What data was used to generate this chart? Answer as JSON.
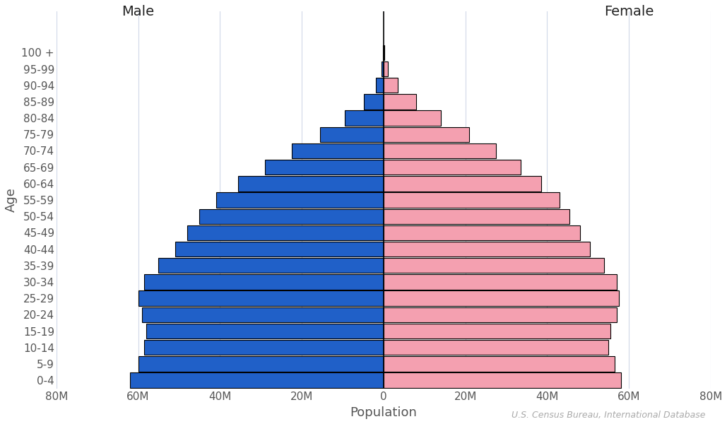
{
  "age_groups": [
    "0-4",
    "5-9",
    "10-14",
    "15-19",
    "20-24",
    "25-29",
    "30-34",
    "35-39",
    "40-44",
    "45-49",
    "50-54",
    "55-59",
    "60-64",
    "65-69",
    "70-74",
    "75-79",
    "80-84",
    "85-89",
    "90-94",
    "95-99",
    "100 +"
  ],
  "male": [
    62000000,
    60000000,
    58500000,
    58000000,
    59000000,
    60000000,
    58500000,
    55000000,
    51000000,
    48000000,
    45000000,
    41000000,
    35500000,
    29000000,
    22500000,
    15500000,
    9500000,
    4800000,
    1800000,
    500000,
    90000
  ],
  "female": [
    58000000,
    56500000,
    55000000,
    55500000,
    57000000,
    57500000,
    57000000,
    54000000,
    50500000,
    48000000,
    45500000,
    43000000,
    38500000,
    33500000,
    27500000,
    21000000,
    14000000,
    8000000,
    3500000,
    1000000,
    200000
  ],
  "male_color": "#2060c8",
  "female_color": "#f4a0b0",
  "bar_edge_color": "#000000",
  "bar_linewidth": 0.8,
  "xlim": 80000000,
  "xticks": [
    -80000000,
    -60000000,
    -40000000,
    -20000000,
    0,
    20000000,
    40000000,
    60000000,
    80000000
  ],
  "xtick_labels": [
    "80M",
    "60M",
    "40M",
    "20M",
    "0",
    "20M",
    "40M",
    "60M",
    "80M"
  ],
  "xlabel": "Population",
  "ylabel": "Age",
  "male_label": "Male",
  "female_label": "Female",
  "source_text": "U.S. Census Bureau, International Database",
  "background_color": "#ffffff",
  "grid_color": "#d0d8e8",
  "label_fontsize": 13,
  "tick_fontsize": 11,
  "gender_fontsize": 14,
  "annotation_fontsize": 9
}
